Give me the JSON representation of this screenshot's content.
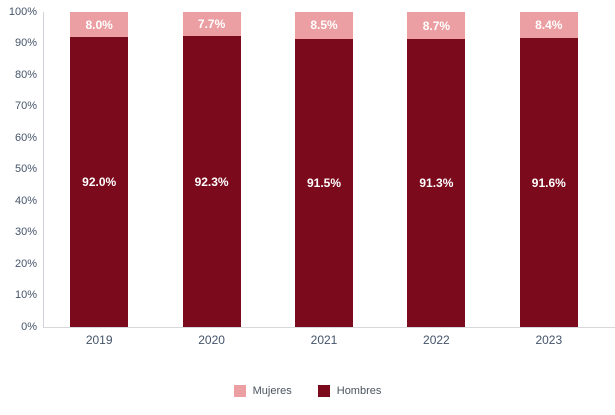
{
  "chart_data": {
    "type": "bar",
    "variant": "stacked-100-percent",
    "title": "",
    "categories": [
      "2019",
      "2020",
      "2021",
      "2022",
      "2023"
    ],
    "series": [
      {
        "name": "Mujeres",
        "color": "#ec9fa2",
        "stack_position": "top",
        "values": [
          8.0,
          7.7,
          8.5,
          8.7,
          8.4
        ],
        "labels": [
          "8.0%",
          "7.7%",
          "8.5%",
          "8.7%",
          "8.4%"
        ]
      },
      {
        "name": "Hombres",
        "color": "#7b0a1c",
        "stack_position": "bottom",
        "values": [
          92.0,
          92.3,
          91.5,
          91.3,
          91.6
        ],
        "labels": [
          "92.0%",
          "92.3%",
          "91.5%",
          "91.3%",
          "91.6%"
        ]
      }
    ],
    "y_axis": {
      "min": 0,
      "max": 100,
      "ticks": [
        "0%",
        "10%",
        "20%",
        "30%",
        "40%",
        "50%",
        "60%",
        "70%",
        "80%",
        "90%",
        "100%"
      ]
    },
    "xlabel": "",
    "ylabel": "",
    "grid": false,
    "data_label_color": "#ffffff",
    "axis_text_color": "#44546a",
    "legend": {
      "position": "bottom",
      "items": [
        {
          "label": "Mujeres",
          "color": "#ec9fa2"
        },
        {
          "label": "Hombres",
          "color": "#7b0a1c"
        }
      ]
    }
  }
}
